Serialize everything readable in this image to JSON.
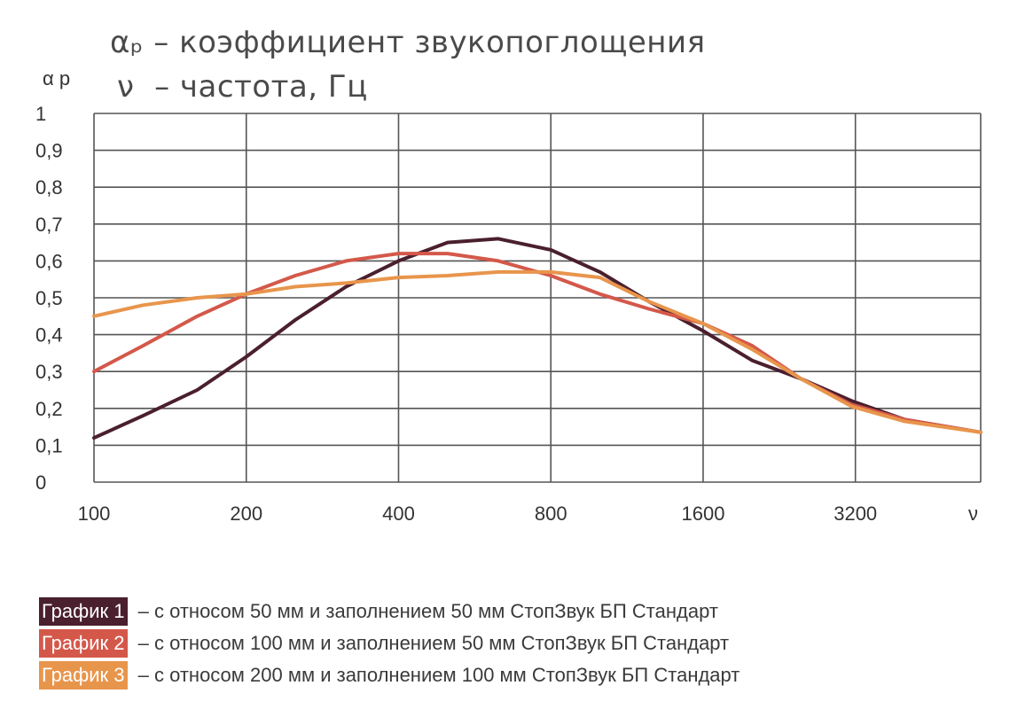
{
  "header": {
    "line1": "αₚ – коэффициент звукопоглощения",
    "line2": "ν  – частота, Гц"
  },
  "chart_data": {
    "type": "line",
    "ylabel": "α р",
    "xlabel": "ν",
    "x_scale": "log2",
    "x_ticks": [
      100,
      200,
      400,
      800,
      1600,
      3200
    ],
    "x_tick_labels": [
      "100",
      "200",
      "400",
      "800",
      "1600",
      "3200"
    ],
    "xlim": [
      100,
      5660
    ],
    "ylim": [
      0,
      1
    ],
    "y_ticks": [
      0,
      0.1,
      0.2,
      0.3,
      0.4,
      0.5,
      0.6,
      0.7,
      0.8,
      0.9,
      1
    ],
    "y_tick_labels": [
      "0",
      "0,1",
      "0,2",
      "0,3",
      "0,4",
      "0,5",
      "0,6",
      "0,7",
      "0,8",
      "0,9",
      "1"
    ],
    "grid": true,
    "series": [
      {
        "name": "График 1",
        "color": "#4a1f2e",
        "points": [
          [
            100,
            0.12
          ],
          [
            125,
            0.18
          ],
          [
            160,
            0.25
          ],
          [
            200,
            0.34
          ],
          [
            250,
            0.44
          ],
          [
            315,
            0.53
          ],
          [
            400,
            0.6
          ],
          [
            500,
            0.65
          ],
          [
            630,
            0.66
          ],
          [
            800,
            0.63
          ],
          [
            1000,
            0.57
          ],
          [
            1250,
            0.49
          ],
          [
            1600,
            0.41
          ],
          [
            2000,
            0.33
          ],
          [
            2500,
            0.28
          ],
          [
            3150,
            0.22
          ],
          [
            4000,
            0.17
          ],
          [
            5660,
            0.135
          ]
        ]
      },
      {
        "name": "График 2",
        "color": "#d4584a",
        "points": [
          [
            100,
            0.3
          ],
          [
            125,
            0.37
          ],
          [
            160,
            0.45
          ],
          [
            200,
            0.51
          ],
          [
            250,
            0.56
          ],
          [
            315,
            0.6
          ],
          [
            400,
            0.62
          ],
          [
            500,
            0.62
          ],
          [
            630,
            0.6
          ],
          [
            800,
            0.56
          ],
          [
            1000,
            0.51
          ],
          [
            1250,
            0.47
          ],
          [
            1600,
            0.43
          ],
          [
            2000,
            0.37
          ],
          [
            2500,
            0.28
          ],
          [
            3150,
            0.21
          ],
          [
            4000,
            0.17
          ],
          [
            5660,
            0.135
          ]
        ]
      },
      {
        "name": "График 3",
        "color": "#e8954c",
        "points": [
          [
            100,
            0.45
          ],
          [
            125,
            0.48
          ],
          [
            160,
            0.5
          ],
          [
            200,
            0.51
          ],
          [
            250,
            0.53
          ],
          [
            315,
            0.54
          ],
          [
            400,
            0.555
          ],
          [
            500,
            0.56
          ],
          [
            630,
            0.57
          ],
          [
            800,
            0.57
          ],
          [
            1000,
            0.555
          ],
          [
            1250,
            0.49
          ],
          [
            1600,
            0.43
          ],
          [
            2000,
            0.36
          ],
          [
            2500,
            0.28
          ],
          [
            3150,
            0.205
          ],
          [
            4000,
            0.165
          ],
          [
            5660,
            0.135
          ]
        ]
      }
    ]
  },
  "legend": [
    {
      "label": "График 1",
      "text": " – с относом 50 мм и заполнением 50 мм СтопЗвук БП Стандарт",
      "color": "#4a1f2e"
    },
    {
      "label": "График 2",
      "text": " – с относом 100 мм и заполнением 50 мм СтопЗвук БП Стандарт",
      "color": "#d4584a"
    },
    {
      "label": "График 3",
      "text": " – с относом 200 мм и заполнением 100 мм СтопЗвук БП Стандарт",
      "color": "#e8954c"
    }
  ]
}
